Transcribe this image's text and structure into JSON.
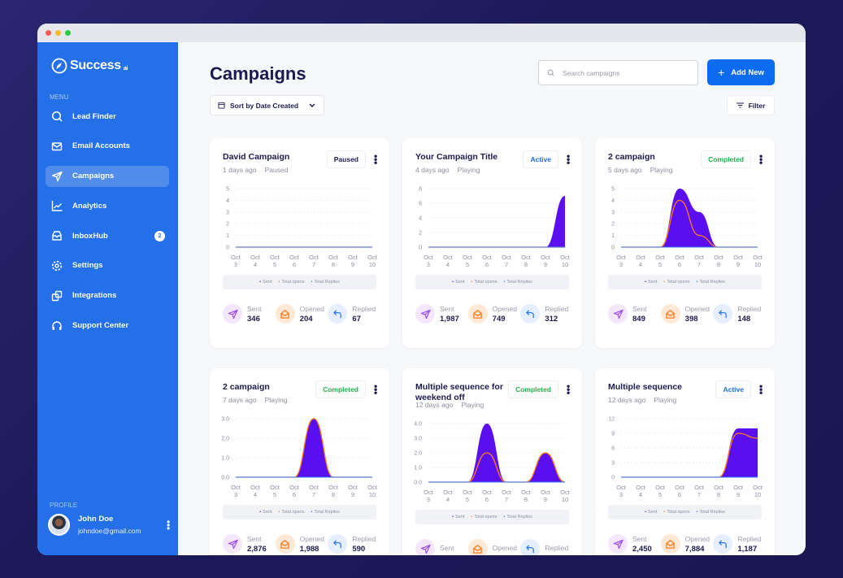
{
  "window": {
    "dots": [
      "#f25f57",
      "#f7bd2e",
      "#2dc840"
    ]
  },
  "sidebar": {
    "brand": "Success",
    "brand_suffix": "ai",
    "menu_heading": "MENU",
    "items": [
      {
        "label": "Lead Finder",
        "icon": "search-icon"
      },
      {
        "label": "Email Accounts",
        "icon": "mail-icon"
      },
      {
        "label": "Campaigns",
        "icon": "send-icon",
        "active": true
      },
      {
        "label": "Analytics",
        "icon": "chart-icon"
      },
      {
        "label": "InboxHub",
        "icon": "inbox-icon",
        "badge": "2"
      },
      {
        "label": "Settings",
        "icon": "gear-icon"
      },
      {
        "label": "Integrations",
        "icon": "integrations-icon"
      },
      {
        "label": "Support Center",
        "icon": "headset-icon"
      }
    ],
    "profile_heading": "PROFILE",
    "profile": {
      "name": "John Doe",
      "email": "johndoe@gmail.com"
    }
  },
  "header": {
    "title": "Campaigns",
    "sort_label": "Sort by Date Created",
    "search_placeholder": "Search campaigns",
    "add_label": "Add New",
    "filter_label": "Filter"
  },
  "colors": {
    "sent": "#5b0ff0",
    "opens": "#ff7a1a",
    "replies": "#2f7bf5",
    "active": "#1a6ff0",
    "completed": "#1fb24a",
    "paused": "#1c1a4f"
  },
  "legend": {
    "sent": "Sent",
    "opens": "Total opens",
    "replies": "Total Replies"
  },
  "stat_labels": {
    "sent": "Sent",
    "opened": "Opened",
    "replied": "Replied"
  },
  "campaigns": [
    {
      "title": "David Campaign",
      "status": "Paused",
      "age": "1 days ago",
      "state": "Paused",
      "sent": "346",
      "opened": "204",
      "replied": "67"
    },
    {
      "title": "Your Campaign Title",
      "status": "Active",
      "age": "4 days ago",
      "state": "Playing",
      "sent": "1,987",
      "opened": "749",
      "replied": "312"
    },
    {
      "title": "2 campaign",
      "status": "Completed",
      "age": "5 days ago",
      "state": "Playing",
      "sent": "849",
      "opened": "398",
      "replied": "148"
    },
    {
      "title": "2 campaign",
      "status": "Completed",
      "age": "7 days ago",
      "state": "Playing",
      "sent": "2,876",
      "opened": "1,988",
      "replied": "590"
    },
    {
      "title": "Multiple sequence for weekend off",
      "status": "Completed",
      "age": "12 days ago",
      "state": "Playing",
      "sent": "",
      "opened": "",
      "replied": ""
    },
    {
      "title": "Multiple sequence",
      "status": "Active",
      "age": "12 days ago",
      "state": "Playing",
      "sent": "2,450",
      "opened": "7,884",
      "replied": "1,187"
    }
  ],
  "chart_data": [
    {
      "type": "area",
      "x": [
        "Oct 3",
        "Oct 4",
        "Oct 5",
        "Oct 6",
        "Oct 7",
        "Oct 8",
        "Oct 9",
        "Oct 10"
      ],
      "yticks": [
        "0",
        "1",
        "2",
        "3",
        "4",
        "5"
      ],
      "ylim": [
        0,
        5
      ],
      "series": [
        {
          "name": "Sent",
          "values": [
            0,
            0,
            0,
            0,
            0,
            0,
            0,
            0
          ]
        },
        {
          "name": "Total opens",
          "values": [
            0,
            0,
            0,
            0,
            0,
            0,
            0,
            0
          ]
        },
        {
          "name": "Total Replies",
          "values": [
            0,
            0,
            0,
            0,
            0,
            0,
            0,
            0
          ]
        }
      ]
    },
    {
      "type": "area",
      "x": [
        "Oct 3",
        "Oct 4",
        "Oct 5",
        "Oct 6",
        "Oct 7",
        "Oct 8",
        "Oct 9",
        "Oct 10"
      ],
      "yticks": [
        "0",
        "2",
        "4",
        "6",
        "8"
      ],
      "ylim": [
        0,
        8
      ],
      "series": [
        {
          "name": "Sent",
          "values": [
            0,
            0,
            0,
            0,
            0,
            0,
            0,
            7
          ]
        },
        {
          "name": "Total opens",
          "values": [
            0,
            0,
            0,
            0,
            0,
            0,
            0,
            0
          ]
        },
        {
          "name": "Total Replies",
          "values": [
            0,
            0,
            0,
            0,
            0,
            0,
            0,
            0
          ]
        }
      ]
    },
    {
      "type": "area",
      "x": [
        "Oct 3",
        "Oct 4",
        "Oct 5",
        "Oct 6",
        "Oct 7",
        "Oct 8",
        "Oct 9",
        "Oct 10"
      ],
      "yticks": [
        "0",
        "1",
        "2",
        "3",
        "4",
        "5"
      ],
      "ylim": [
        0,
        5
      ],
      "series": [
        {
          "name": "Sent",
          "values": [
            0,
            0,
            0,
            5,
            3,
            0,
            0,
            0
          ]
        },
        {
          "name": "Total opens",
          "values": [
            0,
            0,
            0,
            4,
            1,
            0,
            0,
            0
          ]
        },
        {
          "name": "Total Replies",
          "values": [
            0,
            0,
            0,
            0,
            0,
            0,
            0,
            0
          ]
        }
      ]
    },
    {
      "type": "area",
      "x": [
        "Oct 3",
        "Oct 4",
        "Oct 5",
        "Oct 6",
        "Oct 7",
        "Oct 8",
        "Oct 9",
        "Oct 10"
      ],
      "yticks": [
        "0.0",
        "1.0",
        "2.0",
        "3.0"
      ],
      "ylim": [
        0,
        3
      ],
      "series": [
        {
          "name": "Sent",
          "values": [
            0,
            0,
            0,
            0,
            3,
            0,
            0,
            0
          ]
        },
        {
          "name": "Total opens",
          "values": [
            0,
            0,
            0,
            0,
            3,
            0,
            0,
            0
          ]
        },
        {
          "name": "Total Replies",
          "values": [
            0,
            0,
            0,
            0,
            0,
            0,
            0,
            0
          ]
        }
      ]
    },
    {
      "type": "area",
      "x": [
        "Oct 3",
        "Oct 4",
        "Oct 5",
        "Oct 6",
        "Oct 7",
        "Oct 8",
        "Oct 9",
        "Oct 10"
      ],
      "yticks": [
        "0.0",
        "1.0",
        "2.0",
        "3.0",
        "4.0"
      ],
      "ylim": [
        0,
        4
      ],
      "series": [
        {
          "name": "Sent",
          "values": [
            0,
            0,
            0,
            4,
            0,
            0,
            2,
            0
          ]
        },
        {
          "name": "Total opens",
          "values": [
            0,
            0,
            0,
            2,
            0,
            0,
            2,
            0
          ]
        },
        {
          "name": "Total Replies",
          "values": [
            0,
            0,
            0,
            0,
            0,
            0,
            0,
            0
          ]
        }
      ]
    },
    {
      "type": "area",
      "x": [
        "Oct 3",
        "Oct 4",
        "Oct 5",
        "Oct 6",
        "Oct 7",
        "Oct 8",
        "Oct 9",
        "Oct 10"
      ],
      "yticks": [
        "0",
        "3",
        "6",
        "9",
        "12"
      ],
      "ylim": [
        0,
        12
      ],
      "series": [
        {
          "name": "Sent",
          "values": [
            0,
            0,
            0,
            0,
            0,
            0,
            10,
            10
          ]
        },
        {
          "name": "Total opens",
          "values": [
            0,
            0,
            0,
            0,
            0,
            0,
            9,
            8
          ]
        },
        {
          "name": "Total Replies",
          "values": [
            0,
            0,
            0,
            0,
            0,
            0,
            0,
            0
          ]
        }
      ]
    }
  ]
}
